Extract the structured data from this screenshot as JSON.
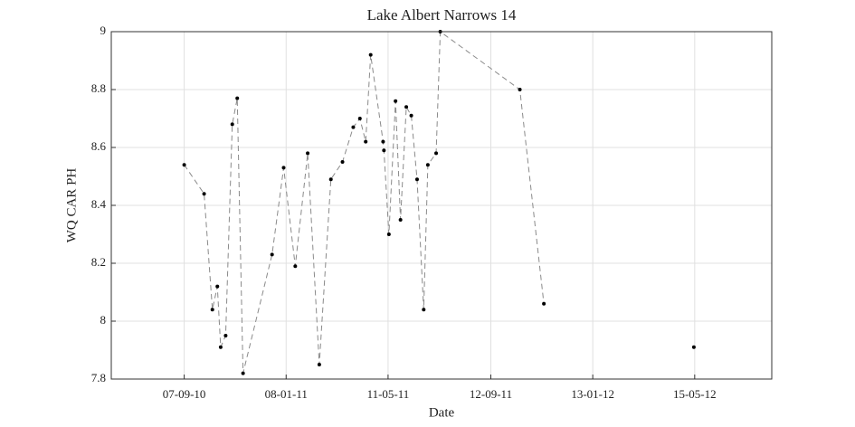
{
  "chart_data": {
    "type": "line",
    "title": "Lake Albert Narrows 14",
    "x_label": "Date",
    "y_label": "WQ CAR PH",
    "x": [
      "2010-09-07",
      "2010-10-01",
      "2010-10-11",
      "2010-10-17",
      "2010-10-21",
      "2010-10-27",
      "2010-11-04",
      "2010-11-10",
      "2010-11-17",
      "2010-12-22",
      "2011-01-05",
      "2011-01-19",
      "2011-02-03",
      "2011-02-17",
      "2011-03-03",
      "2011-03-17",
      "2011-03-30",
      "2011-04-07",
      "2011-04-14",
      "2011-04-20",
      "2011-05-05",
      "2011-05-06",
      "2011-05-12",
      "2011-05-20",
      "2011-05-26",
      "2011-06-02",
      "2011-06-08",
      "2011-06-15",
      "2011-06-23",
      "2011-06-28",
      "2011-07-08",
      "2011-07-13",
      "2011-10-17",
      "2011-11-15",
      "2012-02-15",
      "2012-05-14"
    ],
    "series": [
      {
        "name": "WQ CAR PH",
        "color": "#000000",
        "values": [
          8.54,
          8.44,
          8.04,
          8.12,
          7.91,
          7.95,
          8.68,
          8.77,
          7.82,
          8.23,
          8.53,
          8.19,
          8.58,
          7.85,
          8.49,
          8.55,
          8.67,
          8.7,
          8.62,
          8.92,
          8.62,
          8.59,
          8.3,
          8.76,
          8.35,
          8.74,
          8.71,
          8.49,
          8.04,
          8.54,
          8.58,
          9.0,
          8.8,
          8.06,
          null,
          7.91
        ]
      }
    ],
    "xlim": [
      "2010-06-11",
      "2012-08-16"
    ],
    "xticks": [
      {
        "value": "2010-09-07",
        "label": "07-09-10"
      },
      {
        "value": "2011-01-08",
        "label": "08-01-11"
      },
      {
        "value": "2011-05-11",
        "label": "11-05-11"
      },
      {
        "value": "2011-09-12",
        "label": "12-09-11"
      },
      {
        "value": "2012-01-13",
        "label": "13-01-12"
      },
      {
        "value": "2012-05-15",
        "label": "15-05-12"
      }
    ],
    "ylim": [
      7.8,
      9
    ],
    "yticks": [
      7.8,
      8,
      8.2,
      8.4,
      8.6,
      8.8,
      9
    ],
    "grid": true
  }
}
